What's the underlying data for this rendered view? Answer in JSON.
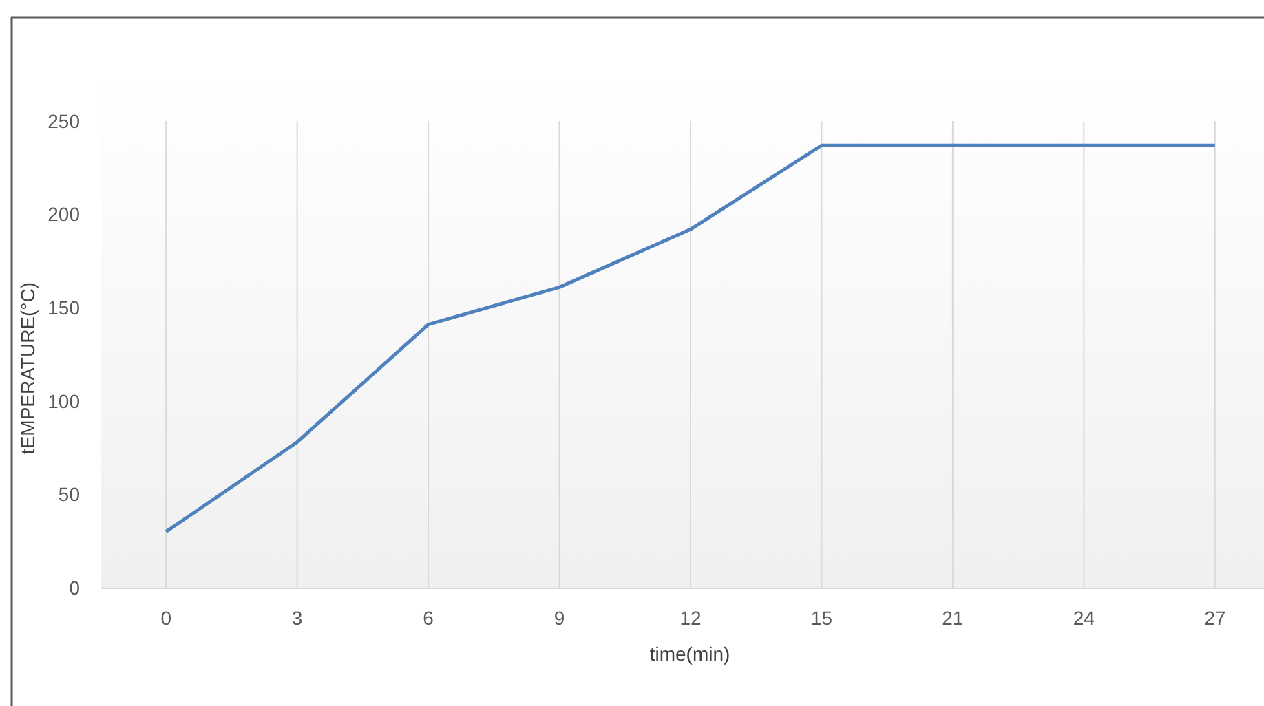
{
  "chart_data": {
    "type": "line",
    "xlabel": "time(min)",
    "ylabel": "tEMPERATURE(°C)",
    "categories": [
      "0",
      "3",
      "6",
      "9",
      "12",
      "15",
      "21",
      "24",
      "27"
    ],
    "series": [
      {
        "color": "#4f81bd",
        "values": [
          30,
          78,
          141,
          161,
          192,
          237,
          237,
          237,
          237
        ]
      }
    ],
    "ylim": [
      0,
      250
    ],
    "yticks": [
      0,
      50,
      100,
      150,
      200,
      250
    ],
    "grid": "x",
    "marker": "none",
    "line_style": "solid"
  }
}
